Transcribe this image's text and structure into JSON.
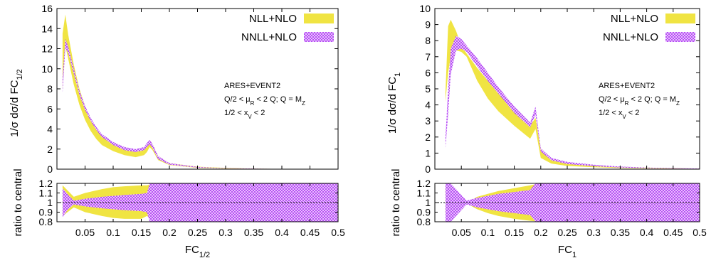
{
  "chart_data": [
    {
      "type": "area",
      "panel": "left",
      "title": "",
      "xlabel": "FC",
      "xlabel_sub": "1/2",
      "ylabel": "1/σ dσ/d FC",
      "ylabel_sub": "1/2",
      "xlim": [
        0.0,
        0.5
      ],
      "ylim": [
        0,
        16
      ],
      "yticks": [
        0,
        2,
        4,
        6,
        8,
        10,
        12,
        14,
        16
      ],
      "xticks": [
        0.05,
        0.1,
        0.15,
        0.2,
        0.25,
        0.3,
        0.35,
        0.4,
        0.45,
        0.5
      ],
      "xtick_labels": [
        "0.05",
        "0.1",
        "0.15",
        "0.2",
        "0.25",
        "0.3",
        "0.35",
        "0.4",
        "0.45",
        "0.5"
      ],
      "legend_position": "top-right",
      "annotation": [
        "ARES+EVENT2",
        "Q/2 < μ_R < 2 Q; Q = M_Z",
        "1/2 < x_V < 2"
      ],
      "series": [
        {
          "name": "NLL+NLO",
          "color": "#f0e442",
          "x": [
            0.01,
            0.015,
            0.02,
            0.03,
            0.04,
            0.05,
            0.06,
            0.07,
            0.08,
            0.1,
            0.12,
            0.14,
            0.155,
            0.16,
            0.165,
            0.17,
            0.18,
            0.2,
            0.25,
            0.3,
            0.35,
            0.4,
            0.45,
            0.5
          ],
          "upper": [
            13.5,
            15.4,
            13.4,
            10.4,
            8.0,
            6.3,
            5.0,
            4.1,
            3.4,
            2.6,
            2.1,
            1.9,
            2.0,
            2.3,
            2.9,
            2.5,
            1.3,
            0.6,
            0.25,
            0.12,
            0.06,
            0.03,
            0.015,
            0.01
          ],
          "lower": [
            8.0,
            12.3,
            11.0,
            8.4,
            6.4,
            4.9,
            3.8,
            3.0,
            2.4,
            1.8,
            1.4,
            1.2,
            1.4,
            1.7,
            2.2,
            1.9,
            0.9,
            0.4,
            0.12,
            0.05,
            0.02,
            0.01,
            0.005,
            0.0
          ]
        },
        {
          "name": "NNLL+NLO",
          "color": "#cc66ff",
          "x": [
            0.01,
            0.015,
            0.02,
            0.03,
            0.04,
            0.05,
            0.06,
            0.07,
            0.08,
            0.1,
            0.12,
            0.14,
            0.155,
            0.16,
            0.165,
            0.17,
            0.18,
            0.2,
            0.25,
            0.3,
            0.35,
            0.4,
            0.45,
            0.5
          ],
          "upper": [
            9.0,
            13.0,
            12.2,
            10.0,
            7.8,
            6.3,
            5.1,
            4.2,
            3.5,
            2.7,
            2.2,
            2.0,
            2.2,
            2.6,
            2.9,
            2.5,
            1.3,
            0.6,
            0.22,
            0.1,
            0.05,
            0.03,
            0.015,
            0.01
          ],
          "lower": [
            7.6,
            12.1,
            11.6,
            9.5,
            7.4,
            5.9,
            4.8,
            3.9,
            3.2,
            2.4,
            1.9,
            1.7,
            1.9,
            2.2,
            2.5,
            2.1,
            1.0,
            0.45,
            0.15,
            0.07,
            0.03,
            0.015,
            0.008,
            0.0
          ]
        }
      ],
      "ratio": {
        "ylabel": "ratio to central",
        "ylim": [
          0.8,
          1.2
        ],
        "yticks": [
          0.8,
          0.9,
          1,
          1.1,
          1.2
        ],
        "ytick_labels": [
          "0.8",
          "0.9",
          "1",
          "1.1",
          "1.2"
        ],
        "series": [
          {
            "name": "NLL+NLO",
            "color": "#f0e442",
            "x": [
              0.01,
              0.03,
              0.05,
              0.08,
              0.1,
              0.12,
              0.15,
              0.16,
              0.17,
              0.19,
              0.2,
              0.25,
              0.3,
              0.35,
              0.4,
              0.45,
              0.5
            ],
            "upper": [
              1.18,
              1.06,
              1.1,
              1.14,
              1.16,
              1.17,
              1.18,
              1.18,
              1.2,
              1.2,
              1.2,
              1.2,
              1.2,
              1.2,
              1.2,
              1.2,
              1.2
            ],
            "lower": [
              0.86,
              0.95,
              0.9,
              0.86,
              0.84,
              0.83,
              0.83,
              0.86,
              0.82,
              0.8,
              0.8,
              0.8,
              0.8,
              0.8,
              0.8,
              0.8,
              0.8
            ]
          },
          {
            "name": "NNLL+NLO",
            "color": "#cc66ff",
            "x": [
              0.01,
              0.02,
              0.03,
              0.05,
              0.08,
              0.1,
              0.12,
              0.15,
              0.16,
              0.165,
              0.17,
              0.2,
              0.25,
              0.3,
              0.35,
              0.4,
              0.45,
              0.5
            ],
            "upper": [
              1.15,
              1.08,
              1.02,
              1.04,
              1.06,
              1.07,
              1.08,
              1.09,
              1.1,
              1.2,
              1.2,
              1.2,
              1.2,
              1.2,
              1.2,
              1.2,
              1.2,
              1.2
            ],
            "lower": [
              0.85,
              0.93,
              0.98,
              0.96,
              0.94,
              0.93,
              0.92,
              0.91,
              0.9,
              0.8,
              0.8,
              0.8,
              0.8,
              0.8,
              0.8,
              0.8,
              0.8,
              0.8
            ]
          }
        ]
      }
    },
    {
      "type": "area",
      "panel": "right",
      "title": "",
      "xlabel": "FC",
      "xlabel_sub": "1",
      "ylabel": "1/σ dσ/d FC",
      "ylabel_sub": "1",
      "xlim": [
        0.0,
        0.5
      ],
      "ylim": [
        0,
        10
      ],
      "yticks": [
        0,
        1,
        2,
        3,
        4,
        5,
        6,
        7,
        8,
        9,
        10
      ],
      "xticks": [
        0.05,
        0.1,
        0.15,
        0.2,
        0.25,
        0.3,
        0.35,
        0.4,
        0.45,
        0.5
      ],
      "xtick_labels": [
        "0.05",
        "0.1",
        "0.15",
        "0.2",
        "0.25",
        "0.3",
        "0.35",
        "0.4",
        "0.45",
        "0.5"
      ],
      "legend_position": "top-right",
      "annotation": [
        "ARES+EVENT2",
        "Q/2 < μ_R < 2 Q; Q = M_Z",
        "1/2 < x_V < 2"
      ],
      "series": [
        {
          "name": "NLL+NLO",
          "color": "#f0e442",
          "x": [
            0.02,
            0.025,
            0.03,
            0.04,
            0.05,
            0.06,
            0.08,
            0.1,
            0.12,
            0.15,
            0.18,
            0.19,
            0.2,
            0.22,
            0.25,
            0.3,
            0.35,
            0.4,
            0.45,
            0.5
          ],
          "upper": [
            4.8,
            8.9,
            9.3,
            8.6,
            7.7,
            7.2,
            6.3,
            5.5,
            4.7,
            3.6,
            2.7,
            3.2,
            1.2,
            0.6,
            0.4,
            0.25,
            0.15,
            0.1,
            0.06,
            0.04
          ],
          "lower": [
            4.2,
            6.0,
            7.0,
            7.4,
            7.3,
            7.0,
            5.5,
            4.4,
            3.6,
            2.7,
            1.9,
            2.5,
            0.7,
            0.35,
            0.2,
            0.12,
            0.07,
            0.04,
            0.02,
            0.01
          ]
        },
        {
          "name": "NNLL+NLO",
          "color": "#cc66ff",
          "x": [
            0.02,
            0.025,
            0.03,
            0.04,
            0.05,
            0.06,
            0.08,
            0.1,
            0.12,
            0.15,
            0.18,
            0.19,
            0.2,
            0.22,
            0.25,
            0.3,
            0.35,
            0.4,
            0.45,
            0.5
          ],
          "upper": [
            2.0,
            5.0,
            7.5,
            8.3,
            8.1,
            7.7,
            6.9,
            6.0,
            5.1,
            3.9,
            2.9,
            3.9,
            1.3,
            0.7,
            0.45,
            0.28,
            0.16,
            0.1,
            0.06,
            0.04
          ],
          "lower": [
            1.3,
            3.4,
            5.9,
            7.4,
            7.5,
            7.3,
            6.4,
            5.5,
            4.7,
            3.5,
            2.6,
            3.4,
            1.1,
            0.55,
            0.32,
            0.18,
            0.1,
            0.06,
            0.03,
            0.015
          ]
        }
      ],
      "ratio": {
        "ylabel": "ratio to central",
        "ylim": [
          0.8,
          1.2
        ],
        "yticks": [
          0.8,
          0.9,
          1,
          1.1,
          1.2
        ],
        "ytick_labels": [
          "0.8",
          "0.9",
          "1",
          "1.1",
          "1.2"
        ],
        "series": [
          {
            "name": "NLL+NLO",
            "color": "#f0e442",
            "x": [
              0.02,
              0.03,
              0.05,
              0.06,
              0.08,
              0.1,
              0.12,
              0.15,
              0.18,
              0.2,
              0.21,
              0.22,
              0.25,
              0.3,
              0.35,
              0.4,
              0.45,
              0.5
            ],
            "upper": [
              1.18,
              1.12,
              1.03,
              1.0,
              1.06,
              1.09,
              1.12,
              1.15,
              1.18,
              1.2,
              1.2,
              1.2,
              1.2,
              1.2,
              1.2,
              1.2,
              1.2,
              1.2
            ],
            "lower": [
              0.88,
              0.92,
              0.97,
              0.99,
              0.93,
              0.89,
              0.86,
              0.83,
              0.81,
              0.8,
              0.8,
              0.8,
              0.8,
              0.8,
              0.8,
              0.8,
              0.8,
              0.8
            ]
          },
          {
            "name": "NNLL+NLO",
            "color": "#cc66ff",
            "x": [
              0.02,
              0.03,
              0.05,
              0.06,
              0.08,
              0.1,
              0.12,
              0.15,
              0.18,
              0.19,
              0.2,
              0.25,
              0.3,
              0.35,
              0.4,
              0.45,
              0.5
            ],
            "upper": [
              1.2,
              1.2,
              1.08,
              1.02,
              1.05,
              1.07,
              1.09,
              1.11,
              1.13,
              1.2,
              1.2,
              1.2,
              1.2,
              1.2,
              1.2,
              1.2,
              1.2
            ],
            "lower": [
              0.8,
              0.8,
              0.92,
              0.98,
              0.95,
              0.93,
              0.91,
              0.89,
              0.87,
              0.8,
              0.8,
              0.8,
              0.8,
              0.8,
              0.8,
              0.8,
              0.8
            ]
          }
        ]
      }
    }
  ]
}
